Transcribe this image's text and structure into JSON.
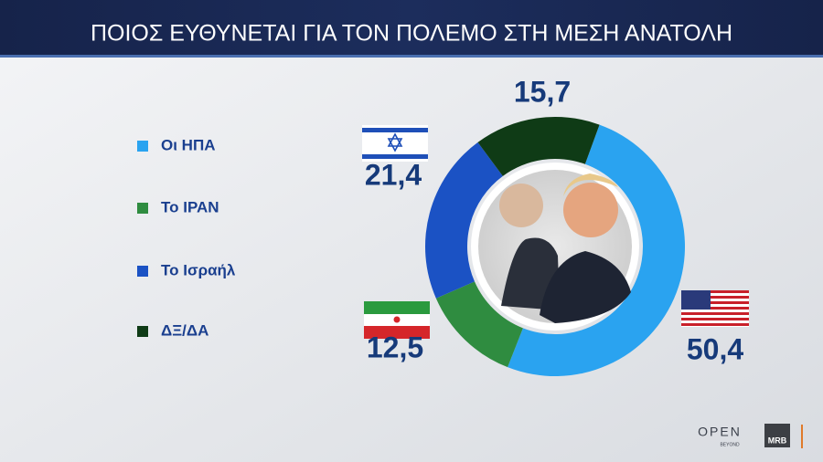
{
  "chart_data": {
    "type": "donut",
    "title": "ΠΟΙΟΣ ΕΥΘΥΝΕΤΑΙ ΓΙΑ ΤΟΝ ΠΟΛΕΜΟ ΣΤΗ ΜΕΣΗ ΑΝΑΤΟΛΗ",
    "categories": [
      "Οι ΗΠΑ",
      "Το ΙΡΑΝ",
      "Το Ισραήλ",
      "ΔΞ/ΔΑ"
    ],
    "values": [
      50.4,
      12.5,
      21.4,
      15.7
    ],
    "value_labels": [
      "50,4",
      "12,5",
      "21,4",
      "15,7"
    ],
    "colors": [
      "#2aa3f0",
      "#2f8c40",
      "#1b52c4",
      "#0f3b16"
    ]
  },
  "branding": {
    "open": "OPEN",
    "beyond": "BEYOND",
    "mrb": "MRB"
  }
}
